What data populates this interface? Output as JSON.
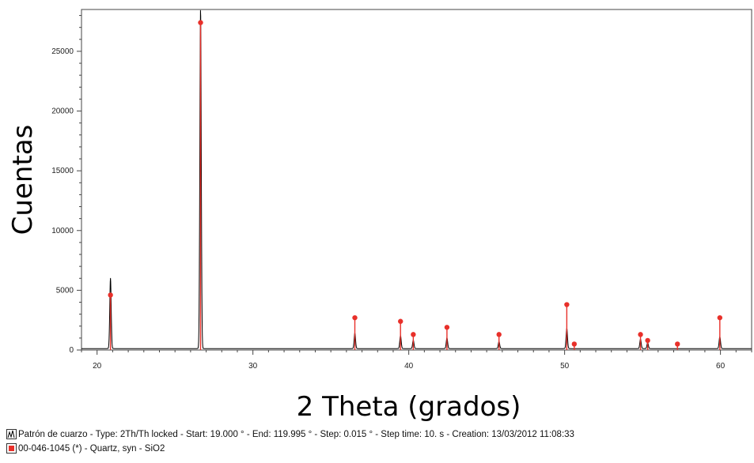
{
  "chart_data": {
    "type": "line",
    "xlabel": "2 Theta (grados)",
    "ylabel": "Cuentas",
    "xlim": [
      19.0,
      62.0
    ],
    "ylim": [
      0,
      28500
    ],
    "x_ticks": [
      20,
      30,
      40,
      50,
      60
    ],
    "y_ticks": [
      0,
      5000,
      10000,
      15000,
      20000,
      25000
    ],
    "grid": false,
    "series": [
      {
        "name": "Patrón de cuarzo",
        "kind": "pattern",
        "color": "#000000",
        "baseline": 120,
        "peaks": [
          {
            "x": 20.86,
            "y": 5900
          },
          {
            "x": 26.64,
            "y": 28500
          },
          {
            "x": 36.54,
            "y": 1300
          },
          {
            "x": 39.47,
            "y": 1100
          },
          {
            "x": 40.29,
            "y": 700
          },
          {
            "x": 42.45,
            "y": 900
          },
          {
            "x": 45.79,
            "y": 600
          },
          {
            "x": 50.14,
            "y": 1700
          },
          {
            "x": 54.87,
            "y": 800
          },
          {
            "x": 55.33,
            "y": 500
          },
          {
            "x": 59.96,
            "y": 1000
          }
        ]
      },
      {
        "name": "00-046-1045 (*) - Quartz, syn - SiO2",
        "kind": "reference",
        "color": "#e8302a",
        "x": [
          20.86,
          26.64,
          36.54,
          39.47,
          40.29,
          42.45,
          45.79,
          50.14,
          50.62,
          54.87,
          55.33,
          57.24,
          59.96
        ],
        "y": [
          4600,
          27400,
          2700,
          2400,
          1300,
          1900,
          1300,
          3800,
          500,
          1300,
          800,
          500,
          2700
        ]
      }
    ]
  },
  "legend": {
    "line1": "Patrón de cuarzo - Type: 2Th/Th locked - Start: 19.000 ° - End: 119.995 ° - Step: 0.015 ° - Step time: 10. s - Creation: 13/03/2012 11:08:33",
    "line2": "00-046-1045 (*) - Quartz, syn - SiO2"
  }
}
